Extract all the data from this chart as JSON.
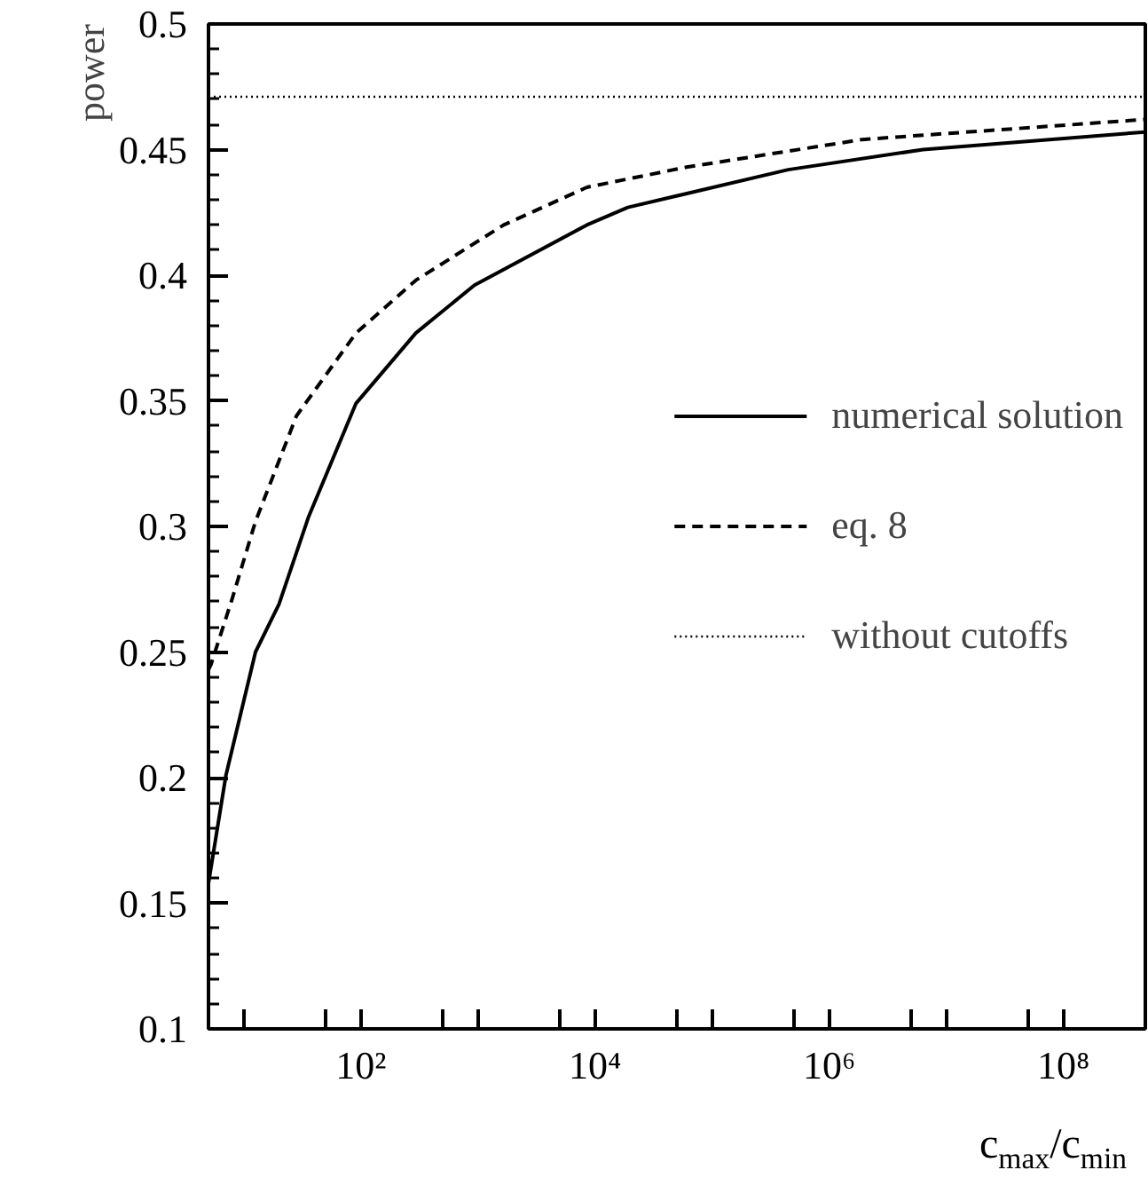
{
  "chart_data": {
    "type": "line",
    "xlabel": "c$_{max}$/c$_{min}$",
    "ylabel": "power",
    "log": "x",
    "xlim": [
      5,
      500000000.0
    ],
    "ylim": [
      0.1,
      0.5
    ],
    "xticks": [
      {
        "value": 10,
        "label": null
      },
      {
        "value": 50,
        "label": null
      },
      {
        "value": 100,
        "label": "10²"
      },
      {
        "value": 500,
        "label": null
      },
      {
        "value": 1000,
        "label": null
      },
      {
        "value": 5000,
        "label": null
      },
      {
        "value": 10000,
        "label": "10⁴"
      },
      {
        "value": 50000,
        "label": null
      },
      {
        "value": 100000,
        "label": null
      },
      {
        "value": 500000,
        "label": null
      },
      {
        "value": 1000000,
        "label": "10⁶"
      },
      {
        "value": 5000000,
        "label": null
      },
      {
        "value": 10000000,
        "label": null
      },
      {
        "value": 50000000,
        "label": null
      },
      {
        "value": 100000000,
        "label": "10⁸"
      }
    ],
    "yticks": [
      0.1,
      0.15,
      0.2,
      0.25,
      0.3,
      0.35,
      0.4,
      0.45,
      0.5
    ],
    "series": [
      {
        "name": "numerical solution",
        "color": "#000000",
        "line_style": "solid",
        "x": [
          5,
          7.05,
          12.6,
          20,
          35.9,
          91,
          295,
          933,
          8511,
          19050,
          446700,
          6310000,
          500000000
        ],
        "values": [
          0.158,
          0.201,
          0.25,
          0.269,
          0.304,
          0.349,
          0.377,
          0.396,
          0.42,
          0.427,
          0.442,
          0.45,
          0.457
        ]
      },
      {
        "name": "eq. 8",
        "color": "#000000",
        "line_style": "dashed",
        "x": [
          5,
          5.25,
          7.94,
          12.6,
          28.2,
          91,
          295,
          1660,
          8511,
          60256,
          1905000,
          500000000
        ],
        "values": [
          0.243,
          0.245,
          0.271,
          0.302,
          0.344,
          0.377,
          0.398,
          0.42,
          0.435,
          0.443,
          0.454,
          0.462
        ]
      }
    ],
    "ref_lines": [
      {
        "axis": "y",
        "value": 0.471,
        "label": "without cutoffs",
        "color": "#000000",
        "line_style": "dotted"
      }
    ],
    "legend": "right",
    "grid": false,
    "marker": "none"
  }
}
